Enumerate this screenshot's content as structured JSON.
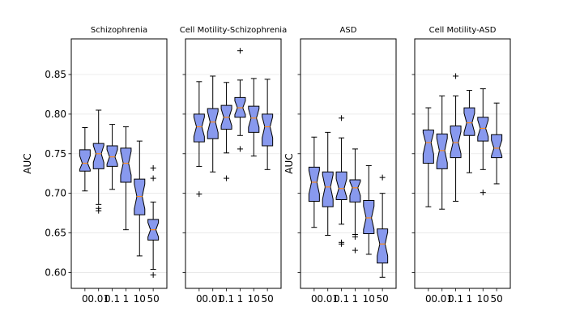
{
  "chart_data": {
    "type": "box",
    "shared_categories": [
      "0",
      "0.01",
      "0.1",
      "1",
      "10",
      "50"
    ],
    "y_ticks": [
      0.6,
      0.65,
      0.7,
      0.75,
      0.8,
      0.85
    ],
    "ylim": [
      0.58,
      0.895
    ],
    "grid": "horizontal",
    "box_color": "#8899ee",
    "median_color": "#ff8c1a",
    "panels": [
      {
        "title": "Schizophrenia",
        "ylabel": "AUC",
        "show_y_ticklabels": true,
        "boxes": [
          {
            "category": "0",
            "whislo": 0.703,
            "q1": 0.728,
            "median": 0.738,
            "q3": 0.755,
            "whishi": 0.783,
            "fliers": []
          },
          {
            "category": "0.01",
            "whislo": 0.686,
            "q1": 0.731,
            "median": 0.75,
            "q3": 0.763,
            "whishi": 0.805,
            "fliers": [
              0.681,
              0.678
            ]
          },
          {
            "category": "0.1",
            "whislo": 0.705,
            "q1": 0.734,
            "median": 0.746,
            "q3": 0.76,
            "whishi": 0.787,
            "fliers": []
          },
          {
            "category": "1",
            "whislo": 0.654,
            "q1": 0.714,
            "median": 0.738,
            "q3": 0.757,
            "whishi": 0.784,
            "fliers": []
          },
          {
            "category": "10",
            "whislo": 0.621,
            "q1": 0.673,
            "median": 0.696,
            "q3": 0.718,
            "whishi": 0.766,
            "fliers": []
          },
          {
            "category": "50",
            "whislo": 0.604,
            "q1": 0.641,
            "median": 0.654,
            "q3": 0.667,
            "whishi": 0.689,
            "fliers": [
              0.732,
              0.719,
              0.597
            ]
          }
        ]
      },
      {
        "title": "Cell Motility-Schizophrenia",
        "ylabel": "",
        "show_y_ticklabels": false,
        "boxes": [
          {
            "category": "0",
            "whislo": 0.734,
            "q1": 0.765,
            "median": 0.784,
            "q3": 0.8,
            "whishi": 0.841,
            "fliers": [
              0.699
            ]
          },
          {
            "category": "0.01",
            "whislo": 0.727,
            "q1": 0.769,
            "median": 0.79,
            "q3": 0.807,
            "whishi": 0.848,
            "fliers": []
          },
          {
            "category": "0.1",
            "whislo": 0.751,
            "q1": 0.781,
            "median": 0.796,
            "q3": 0.811,
            "whishi": 0.84,
            "fliers": [
              0.719
            ]
          },
          {
            "category": "1",
            "whislo": 0.773,
            "q1": 0.796,
            "median": 0.808,
            "q3": 0.821,
            "whishi": 0.843,
            "fliers": [
              0.88,
              0.756
            ]
          },
          {
            "category": "10",
            "whislo": 0.747,
            "q1": 0.777,
            "median": 0.795,
            "q3": 0.81,
            "whishi": 0.845,
            "fliers": []
          },
          {
            "category": "50",
            "whislo": 0.73,
            "q1": 0.76,
            "median": 0.784,
            "q3": 0.8,
            "whishi": 0.844,
            "fliers": []
          }
        ]
      },
      {
        "title": "ASD",
        "ylabel": "AUC",
        "show_y_ticklabels": false,
        "boxes": [
          {
            "category": "0",
            "whislo": 0.657,
            "q1": 0.69,
            "median": 0.714,
            "q3": 0.733,
            "whishi": 0.771,
            "fliers": []
          },
          {
            "category": "0.01",
            "whislo": 0.647,
            "q1": 0.683,
            "median": 0.708,
            "q3": 0.727,
            "whishi": 0.777,
            "fliers": []
          },
          {
            "category": "0.1",
            "whislo": 0.661,
            "q1": 0.692,
            "median": 0.706,
            "q3": 0.727,
            "whishi": 0.77,
            "fliers": [
              0.795,
              0.638,
              0.636
            ]
          },
          {
            "category": "1",
            "whislo": 0.648,
            "q1": 0.689,
            "median": 0.707,
            "q3": 0.717,
            "whishi": 0.756,
            "fliers": [
              0.645,
              0.628
            ]
          },
          {
            "category": "10",
            "whislo": 0.623,
            "q1": 0.649,
            "median": 0.669,
            "q3": 0.691,
            "whishi": 0.735,
            "fliers": []
          },
          {
            "category": "50",
            "whislo": 0.594,
            "q1": 0.612,
            "median": 0.636,
            "q3": 0.655,
            "whishi": 0.7,
            "fliers": [
              0.72
            ]
          }
        ]
      },
      {
        "title": "Cell Motility-ASD",
        "ylabel": "",
        "show_y_ticklabels": false,
        "boxes": [
          {
            "category": "0",
            "whislo": 0.683,
            "q1": 0.738,
            "median": 0.764,
            "q3": 0.78,
            "whishi": 0.808,
            "fliers": []
          },
          {
            "category": "0.01",
            "whislo": 0.68,
            "q1": 0.731,
            "median": 0.754,
            "q3": 0.775,
            "whishi": 0.823,
            "fliers": []
          },
          {
            "category": "0.1",
            "whislo": 0.69,
            "q1": 0.745,
            "median": 0.764,
            "q3": 0.785,
            "whishi": 0.823,
            "fliers": [
              0.848
            ]
          },
          {
            "category": "1",
            "whislo": 0.726,
            "q1": 0.773,
            "median": 0.789,
            "q3": 0.808,
            "whishi": 0.83,
            "fliers": []
          },
          {
            "category": "10",
            "whislo": 0.73,
            "q1": 0.766,
            "median": 0.782,
            "q3": 0.796,
            "whishi": 0.832,
            "fliers": [
              0.701
            ]
          },
          {
            "category": "50",
            "whislo": 0.712,
            "q1": 0.745,
            "median": 0.757,
            "q3": 0.774,
            "whishi": 0.814,
            "fliers": []
          }
        ]
      }
    ]
  }
}
